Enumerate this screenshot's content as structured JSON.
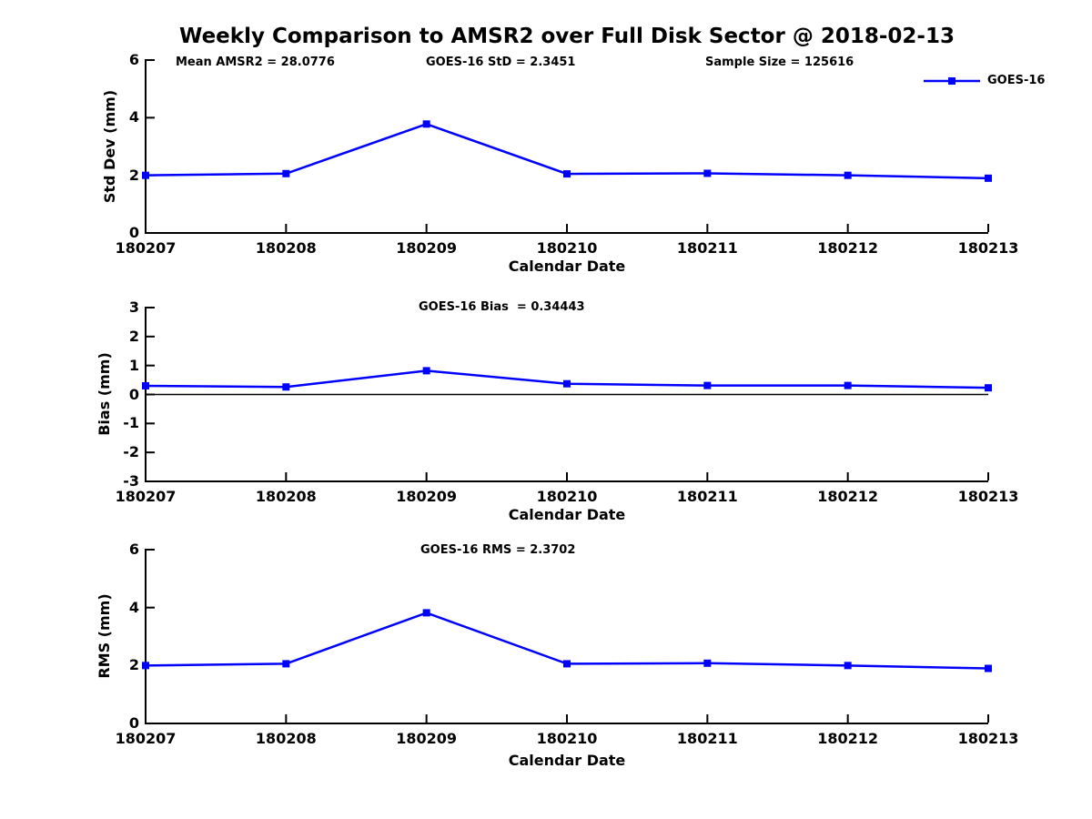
{
  "title": "Weekly Comparison to AMSR2 over Full Disk Sector @ 2018-02-13",
  "legend": {
    "label": "GOES-16"
  },
  "colors": {
    "series": "#0000FF",
    "axis": "#000000",
    "zero_line": "#000000",
    "text": "#000000",
    "background": "#FFFFFF"
  },
  "stats": {
    "mean_amsr2": 28.0776,
    "goes16_std": 2.3451,
    "sample_size": 125616,
    "goes16_bias": 0.34443,
    "goes16_rms": 2.3702
  },
  "chart_data": [
    {
      "type": "line",
      "name": "std-dev",
      "ylabel": "Std Dev (mm)",
      "xlabel": "Calendar Date",
      "ylim": [
        0,
        6
      ],
      "yticks": [
        0,
        2,
        4,
        6
      ],
      "grid": false,
      "zero_line": false,
      "legend_position": "top-right",
      "categories": [
        "180207",
        "180208",
        "180209",
        "180210",
        "180211",
        "180212",
        "180213"
      ],
      "series": [
        {
          "name": "GOES-16",
          "marker": "square",
          "values": [
            2.0,
            2.06,
            3.78,
            2.05,
            2.07,
            2.0,
            1.9
          ]
        }
      ],
      "annotations": [
        {
          "text": "Mean AMSR2 = 28.0776"
        },
        {
          "text": "GOES-16 StD = 2.3451"
        },
        {
          "text": "Sample Size = 125616"
        }
      ]
    },
    {
      "type": "line",
      "name": "bias",
      "ylabel": "Bias (mm)",
      "xlabel": "Calendar Date",
      "ylim": [
        -3,
        3
      ],
      "yticks": [
        3,
        2,
        1,
        0,
        -1,
        -2,
        -3
      ],
      "grid": false,
      "zero_line": true,
      "categories": [
        "180207",
        "180208",
        "180209",
        "180210",
        "180211",
        "180212",
        "180213"
      ],
      "series": [
        {
          "name": "GOES-16",
          "marker": "square",
          "values": [
            0.3,
            0.26,
            0.82,
            0.37,
            0.31,
            0.31,
            0.23
          ]
        }
      ],
      "annotations": [
        {
          "text": "GOES-16 Bias  = 0.34443"
        }
      ]
    },
    {
      "type": "line",
      "name": "rms",
      "ylabel": "RMS (mm)",
      "xlabel": "Calendar Date",
      "ylim": [
        0,
        6
      ],
      "yticks": [
        0,
        2,
        4,
        6
      ],
      "grid": false,
      "zero_line": false,
      "categories": [
        "180207",
        "180208",
        "180209",
        "180210",
        "180211",
        "180212",
        "180213"
      ],
      "series": [
        {
          "name": "GOES-16",
          "marker": "square",
          "values": [
            2.0,
            2.06,
            3.82,
            2.06,
            2.08,
            2.0,
            1.9
          ]
        }
      ],
      "annotations": [
        {
          "text": "GOES-16 RMS = 2.3702"
        }
      ]
    }
  ]
}
